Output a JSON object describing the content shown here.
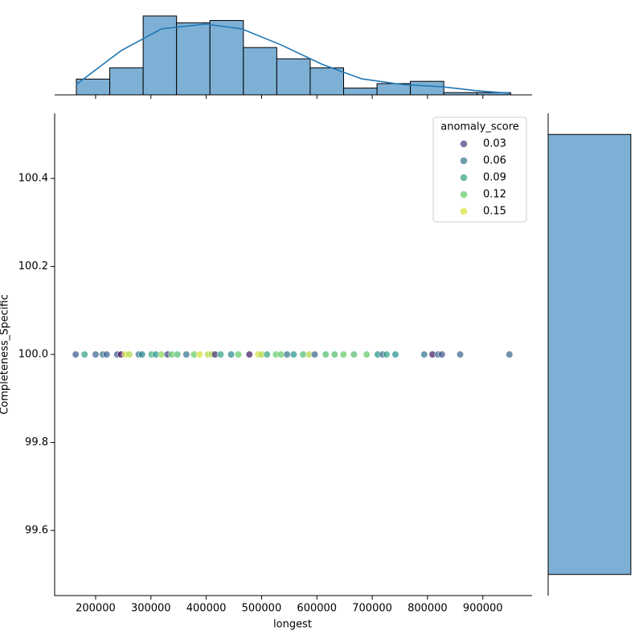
{
  "chart_data": [
    {
      "type": "scatter",
      "xlabel": "longest",
      "ylabel": "Completeness_Specific",
      "x": [
        164000,
        180000,
        200000,
        213000,
        220000,
        239000,
        246000,
        254000,
        261000,
        278000,
        284000,
        301000,
        309000,
        319000,
        330000,
        338000,
        348000,
        364000,
        378000,
        388000,
        403000,
        410000,
        416000,
        426000,
        445000,
        458000,
        478000,
        494000,
        500000,
        510000,
        526000,
        535000,
        546000,
        558000,
        575000,
        586000,
        596000,
        616000,
        632000,
        648000,
        667000,
        690000,
        710000,
        719000,
        726000,
        742000,
        794000,
        809000,
        819000,
        826000,
        859000,
        948000
      ],
      "y": [
        100,
        100,
        100,
        100,
        100,
        100,
        100,
        100,
        100,
        100,
        100,
        100,
        100,
        100,
        100,
        100,
        100,
        100,
        100,
        100,
        100,
        100,
        100,
        100,
        100,
        100,
        100,
        100,
        100,
        100,
        100,
        100,
        100,
        100,
        100,
        100,
        100,
        100,
        100,
        100,
        100,
        100,
        100,
        100,
        100,
        100,
        100,
        100,
        100,
        100,
        100,
        100
      ],
      "hue": [
        0.04,
        0.09,
        0.05,
        0.06,
        0.05,
        0.04,
        0.0,
        0.15,
        0.14,
        0.06,
        0.07,
        0.1,
        0.08,
        0.13,
        0.03,
        0.12,
        0.11,
        0.06,
        0.12,
        0.15,
        0.14,
        0.14,
        0.02,
        0.09,
        0.07,
        0.12,
        0.01,
        0.15,
        0.14,
        0.09,
        0.12,
        0.12,
        0.06,
        0.08,
        0.11,
        0.14,
        0.05,
        0.11,
        0.11,
        0.12,
        0.11,
        0.12,
        0.08,
        0.05,
        0.09,
        0.08,
        0.06,
        0.01,
        0.05,
        0.04,
        0.05,
        0.05
      ],
      "colormap": [
        "#440154",
        "#3b528b",
        "#21918c",
        "#5ec962",
        "#fde725"
      ],
      "hue_range": [
        0,
        0.16
      ],
      "xlim": [
        126000,
        989000
      ],
      "ylim": [
        99.452,
        100.548
      ],
      "xticks": [
        200000,
        300000,
        400000,
        500000,
        600000,
        700000,
        800000,
        900000
      ],
      "yticks": [
        99.6,
        99.8,
        {
          "value": 100,
          "label": "100.0"
        },
        100.2,
        100.4
      ],
      "legend": {
        "title": "anomaly_score",
        "entries": [
          0.03,
          0.06,
          0.09,
          0.12,
          0.15
        ]
      }
    },
    {
      "type": "histogram",
      "color": "#7eb0d5",
      "bins": [
        165217,
        225602,
        285987,
        346372,
        406757,
        467142,
        527527,
        587912,
        648297,
        708682,
        769067,
        829452,
        889837,
        950222
      ],
      "counts": [
        7,
        12,
        35,
        32,
        33,
        21,
        16,
        12,
        3,
        5,
        6,
        1,
        1
      ],
      "ylim": [
        0,
        36.75
      ],
      "kde": {
        "x": [
          165000,
          246000,
          319000,
          399000,
          464000,
          536000,
          609000,
          681000,
          754000,
          826000,
          890000,
          949000
        ],
        "values": [
          4.6,
          19.6,
          29.3,
          31.4,
          29.3,
          22.1,
          13.6,
          7.1,
          4.6,
          3.6,
          1.8,
          0.7
        ],
        "color": "#1f77b4"
      }
    },
    {
      "type": "histogram-horizontal",
      "color": "#7eb0d5",
      "bins": [
        99.5,
        100.5
      ],
      "counts": [
        184
      ],
      "xlim": [
        0,
        193.2
      ]
    }
  ]
}
